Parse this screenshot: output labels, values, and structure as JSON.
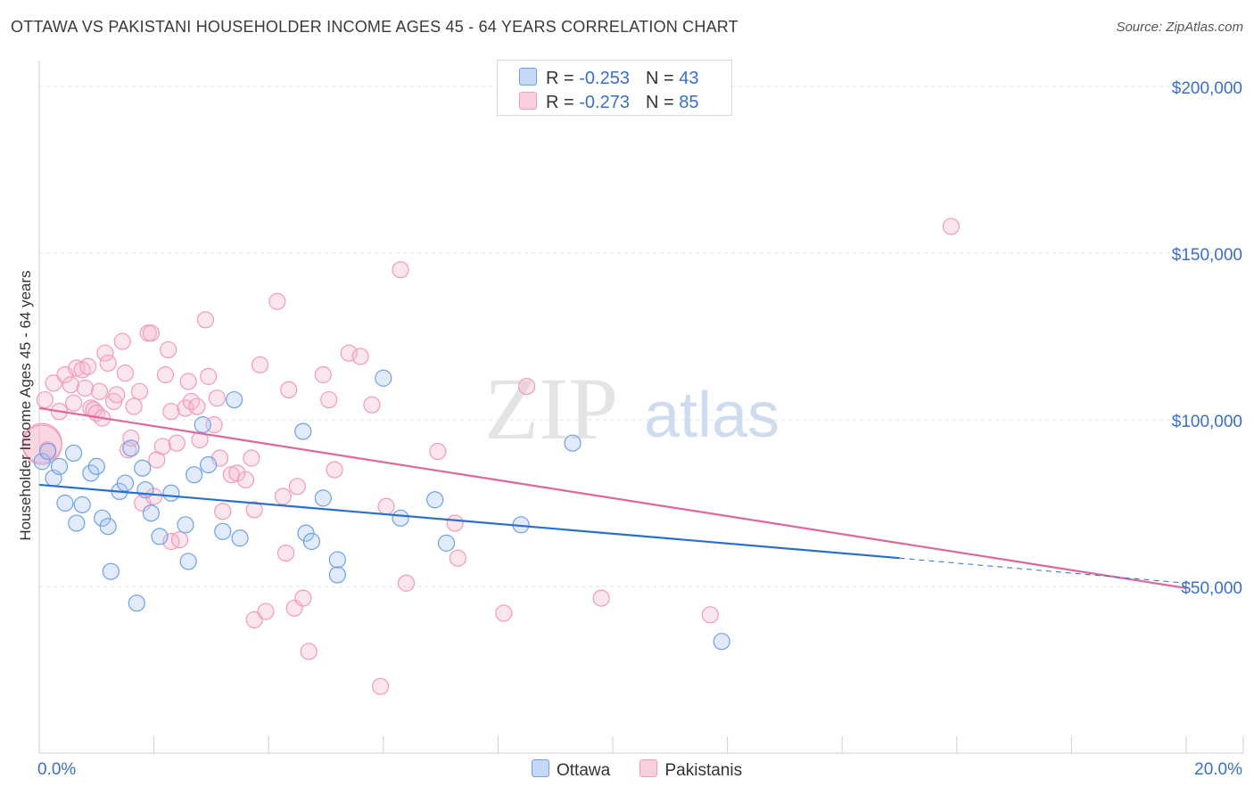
{
  "title": "OTTAWA VS PAKISTANI HOUSEHOLDER INCOME AGES 45 - 64 YEARS CORRELATION CHART",
  "source": "Source: ZipAtlas.com",
  "watermark": {
    "zip": "ZIP",
    "atlas": "atlas"
  },
  "legend_top": [
    {
      "r_label": "R = ",
      "r_value": "-0.253",
      "n_label": "N = ",
      "n_value": "43"
    },
    {
      "r_label": "R = ",
      "r_value": "-0.273",
      "n_label": "N = ",
      "n_value": "85"
    }
  ],
  "chart_data": {
    "type": "scatter",
    "title": "OTTAWA VS PAKISTANI HOUSEHOLDER INCOME AGES 45 - 64 YEARS CORRELATION CHART",
    "ylabel": "Householder Income Ages 45 - 64 years",
    "xlabel": "",
    "xlim": [
      0,
      20
    ],
    "ylim": [
      0,
      205000
    ],
    "x_tick_labels": [
      "0.0%",
      "20.0%"
    ],
    "y_ticks": [
      50000,
      100000,
      150000,
      200000
    ],
    "y_tick_labels": [
      "$50,000",
      "$100,000",
      "$150,000",
      "$200,000"
    ],
    "grid": true,
    "legend_position": "bottom-center",
    "colors": {
      "ottawa": "#6fa0e8",
      "ottawa_line": "#2a6fd0",
      "pakistani": "#f29ab7",
      "pakistani_line": "#e0679a"
    },
    "series": [
      {
        "name": "Ottawa",
        "r": -0.253,
        "n": 43,
        "trend": {
          "x": [
            0.0,
            15.0
          ],
          "y": [
            80500,
            58500
          ],
          "dashed_to": [
            20.0,
            51000
          ]
        },
        "points": [
          [
            0.05,
            87500
          ],
          [
            0.15,
            90500
          ],
          [
            0.25,
            82500
          ],
          [
            0.35,
            86000
          ],
          [
            0.45,
            75000
          ],
          [
            0.6,
            90000
          ],
          [
            0.65,
            69000
          ],
          [
            0.75,
            74500
          ],
          [
            0.9,
            84000
          ],
          [
            1.0,
            86000
          ],
          [
            1.1,
            70500
          ],
          [
            1.2,
            68000
          ],
          [
            1.25,
            54500
          ],
          [
            1.4,
            78500
          ],
          [
            1.5,
            81000
          ],
          [
            1.6,
            91500
          ],
          [
            1.7,
            45000
          ],
          [
            1.8,
            85500
          ],
          [
            1.85,
            79000
          ],
          [
            1.95,
            72000
          ],
          [
            2.1,
            65000
          ],
          [
            2.3,
            78000
          ],
          [
            2.55,
            68500
          ],
          [
            2.6,
            57500
          ],
          [
            2.7,
            83500
          ],
          [
            2.85,
            98500
          ],
          [
            2.95,
            86500
          ],
          [
            3.2,
            66500
          ],
          [
            3.4,
            106000
          ],
          [
            3.5,
            64500
          ],
          [
            4.6,
            96500
          ],
          [
            4.65,
            66000
          ],
          [
            4.75,
            63500
          ],
          [
            4.95,
            76500
          ],
          [
            5.2,
            53500
          ],
          [
            5.2,
            58000
          ],
          [
            6.0,
            112500
          ],
          [
            6.3,
            70500
          ],
          [
            6.9,
            76000
          ],
          [
            7.1,
            63000
          ],
          [
            8.4,
            68500
          ],
          [
            9.3,
            93000
          ],
          [
            11.9,
            33500
          ]
        ]
      },
      {
        "name": "Pakistanis",
        "r": -0.273,
        "n": 85,
        "trend": {
          "x": [
            0.0,
            20.0
          ],
          "y": [
            103500,
            49500
          ]
        },
        "points": [
          [
            0.05,
            93000
          ],
          [
            0.1,
            106000
          ],
          [
            0.15,
            91000
          ],
          [
            0.25,
            111000
          ],
          [
            0.35,
            102500
          ],
          [
            0.45,
            113500
          ],
          [
            0.55,
            110500
          ],
          [
            0.6,
            105000
          ],
          [
            0.65,
            115500
          ],
          [
            0.75,
            115000
          ],
          [
            0.8,
            109500
          ],
          [
            0.85,
            116000
          ],
          [
            0.9,
            103500
          ],
          [
            0.95,
            103000
          ],
          [
            1.0,
            102000
          ],
          [
            1.05,
            108500
          ],
          [
            1.1,
            100500
          ],
          [
            1.15,
            120000
          ],
          [
            1.2,
            117000
          ],
          [
            1.3,
            105500
          ],
          [
            1.35,
            107500
          ],
          [
            1.45,
            123500
          ],
          [
            1.5,
            114000
          ],
          [
            1.55,
            91000
          ],
          [
            1.6,
            94500
          ],
          [
            1.65,
            104000
          ],
          [
            1.75,
            108500
          ],
          [
            1.8,
            75000
          ],
          [
            1.9,
            126000
          ],
          [
            1.95,
            126000
          ],
          [
            2.0,
            77000
          ],
          [
            2.05,
            88000
          ],
          [
            2.15,
            92000
          ],
          [
            2.2,
            113500
          ],
          [
            2.25,
            121000
          ],
          [
            2.3,
            102500
          ],
          [
            2.3,
            63500
          ],
          [
            2.4,
            93000
          ],
          [
            2.45,
            64000
          ],
          [
            2.55,
            103500
          ],
          [
            2.6,
            111500
          ],
          [
            2.65,
            105500
          ],
          [
            2.75,
            104000
          ],
          [
            2.8,
            94000
          ],
          [
            2.9,
            130000
          ],
          [
            2.95,
            113000
          ],
          [
            3.05,
            98500
          ],
          [
            3.1,
            106500
          ],
          [
            3.15,
            88500
          ],
          [
            3.2,
            72500
          ],
          [
            3.35,
            83500
          ],
          [
            3.45,
            84000
          ],
          [
            3.6,
            82000
          ],
          [
            3.7,
            88500
          ],
          [
            3.75,
            73000
          ],
          [
            3.85,
            116500
          ],
          [
            3.75,
            40000
          ],
          [
            3.95,
            42500
          ],
          [
            4.15,
            135500
          ],
          [
            4.25,
            77000
          ],
          [
            4.3,
            60000
          ],
          [
            4.35,
            109000
          ],
          [
            4.45,
            43500
          ],
          [
            4.5,
            80000
          ],
          [
            4.6,
            46500
          ],
          [
            4.7,
            30500
          ],
          [
            4.95,
            113500
          ],
          [
            5.05,
            106000
          ],
          [
            5.15,
            85000
          ],
          [
            5.4,
            120000
          ],
          [
            5.6,
            119000
          ],
          [
            5.8,
            104500
          ],
          [
            5.95,
            20000
          ],
          [
            6.05,
            74000
          ],
          [
            6.3,
            145000
          ],
          [
            6.4,
            51000
          ],
          [
            6.95,
            90500
          ],
          [
            7.25,
            69000
          ],
          [
            7.3,
            58500
          ],
          [
            8.1,
            42000
          ],
          [
            8.5,
            110000
          ],
          [
            9.8,
            46500
          ],
          [
            11.7,
            41500
          ],
          [
            15.9,
            158000
          ],
          [
            0.05,
            92500
          ]
        ]
      }
    ]
  },
  "legend_bottom": [
    {
      "label": "Ottawa",
      "color": "#c5d9f6"
    },
    {
      "label": "Pakistanis",
      "color": "#f9cfdd"
    }
  ]
}
